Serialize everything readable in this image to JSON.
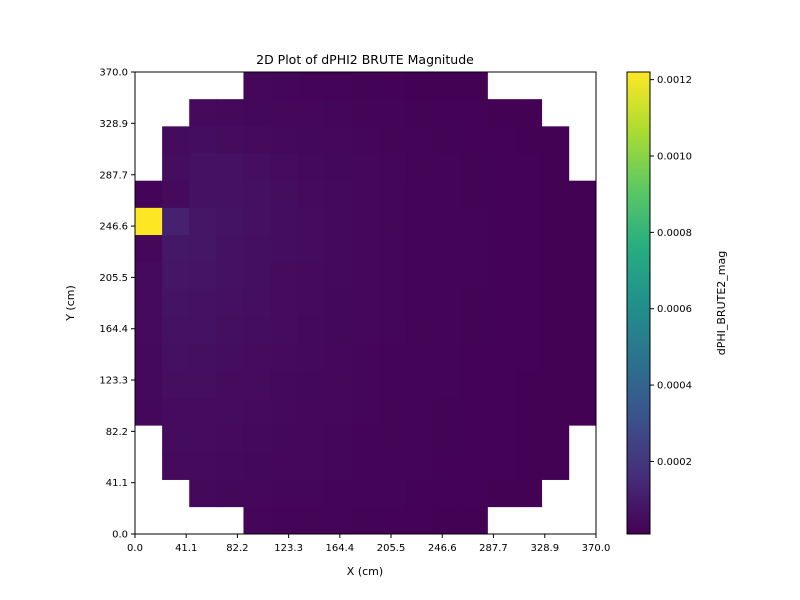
{
  "chart_data": {
    "type": "heatmap",
    "title": "2D Plot of dPHI2 BRUTE Magnitude",
    "xlabel": "X (cm)",
    "ylabel": "Y (cm)",
    "xlim": [
      0.0,
      370.0
    ],
    "ylim": [
      0.0,
      370.0
    ],
    "x_tick_labels": [
      "0.0",
      "41.1",
      "82.2",
      "123.3",
      "164.4",
      "205.5",
      "246.6",
      "287.7",
      "328.9",
      "370.0"
    ],
    "y_tick_labels": [
      "0.0",
      "41.1",
      "82.2",
      "123.3",
      "164.4",
      "205.5",
      "246.6",
      "287.7",
      "328.9",
      "370.0"
    ],
    "grid": false,
    "colormap": "viridis",
    "colorbar": {
      "label": "dPHI_BRUTE2_mag",
      "range": [
        1e-05,
        0.00122
      ],
      "tick_labels": [
        "0.0002",
        "0.0004",
        "0.0006",
        "0.0008",
        "0.0010",
        "0.0012"
      ]
    },
    "grid_size": 17,
    "cell_size": 21.76,
    "row_start_col": [
      4,
      2,
      1,
      1,
      0,
      0,
      0,
      0,
      0,
      0,
      0,
      0,
      0,
      1,
      1,
      2,
      4
    ],
    "row_end_col": [
      12,
      14,
      15,
      15,
      16,
      16,
      16,
      16,
      16,
      16,
      16,
      16,
      16,
      15,
      15,
      14,
      12
    ],
    "z_rows_top_to_bottom": [
      [
        3.2e-05,
        2.8e-05,
        2.4e-05,
        2.2e-05,
        1.9e-05,
        1.7e-05,
        1.5e-05,
        1.4e-05,
        1.3e-05
      ],
      [
        4e-05,
        3.8e-05,
        3.5e-05,
        3.2e-05,
        2.9e-05,
        2.6e-05,
        2.3e-05,
        2.1e-05,
        1.9e-05,
        1.7e-05,
        1.6e-05,
        1.5e-05,
        1.4e-05
      ],
      [
        4.5e-05,
        5.2e-05,
        4.8e-05,
        4.2e-05,
        3.7e-05,
        3.3e-05,
        2.9e-05,
        2.6e-05,
        2.3e-05,
        2.1e-05,
        1.9e-05,
        1.7e-05,
        1.6e-05,
        1.5e-05,
        1.4e-05
      ],
      [
        5e-05,
        7e-05,
        6.5e-05,
        5.5e-05,
        4.6e-05,
        3.9e-05,
        3.4e-05,
        3e-05,
        2.6e-05,
        2.3e-05,
        2.1e-05,
        1.9e-05,
        1.7e-05,
        1.6e-05,
        1.5e-05
      ],
      [
        2.5e-05,
        4e-05,
        7e-05,
        7e-05,
        6e-05,
        5e-05,
        4.2e-05,
        3.6e-05,
        3.1e-05,
        2.7e-05,
        2.4e-05,
        2.1e-05,
        1.9e-05,
        1.7e-05,
        1.6e-05,
        1.5e-05,
        1.4e-05
      ],
      [
        0.00122,
        0.00012,
        8e-05,
        7.2e-05,
        6.2e-05,
        5.2e-05,
        4.4e-05,
        3.7e-05,
        3.2e-05,
        2.8e-05,
        2.5e-05,
        2.2e-05,
        2e-05,
        1.8e-05,
        1.6e-05,
        1.5e-05,
        1.4e-05
      ],
      [
        3e-05,
        8.5e-05,
        7.8e-05,
        6.8e-05,
        5.9e-05,
        5e-05,
        4.3e-05,
        3.7e-05,
        3.2e-05,
        2.8e-05,
        2.5e-05,
        2.2e-05,
        2e-05,
        1.8e-05,
        1.6e-05,
        1.5e-05,
        1.4e-05
      ],
      [
        4e-05,
        8e-05,
        7.4e-05,
        7e-05,
        5.8e-05,
        4.9e-05,
        4.2e-05,
        3.6e-05,
        3.1e-05,
        2.7e-05,
        2.4e-05,
        2.2e-05,
        2e-05,
        1.8e-05,
        1.6e-05,
        1.5e-05,
        1.4e-05
      ],
      [
        4.2e-05,
        7.2e-05,
        7e-05,
        6.2e-05,
        5.4e-05,
        4.6e-05,
        4e-05,
        3.5e-05,
        3e-05,
        2.7e-05,
        2.4e-05,
        2.1e-05,
        1.9e-05,
        1.7e-05,
        1.6e-05,
        1.5e-05,
        1.4e-05
      ],
      [
        4e-05,
        6.6e-05,
        6.4e-05,
        5.7e-05,
        5e-05,
        4.4e-05,
        3.8e-05,
        3.3e-05,
        2.9e-05,
        2.6e-05,
        2.3e-05,
        2.1e-05,
        1.9e-05,
        1.7e-05,
        1.6e-05,
        1.5e-05,
        1.4e-05
      ],
      [
        3.8e-05,
        6e-05,
        5.8e-05,
        5.2e-05,
        4.6e-05,
        4.1e-05,
        3.6e-05,
        3.2e-05,
        2.8e-05,
        2.5e-05,
        2.2e-05,
        2e-05,
        1.8e-05,
        1.7e-05,
        1.6e-05,
        1.5e-05,
        1.4e-05
      ],
      [
        3.6e-05,
        5.4e-05,
        5.3e-05,
        4.8e-05,
        4.3e-05,
        3.8e-05,
        3.4e-05,
        3e-05,
        2.7e-05,
        2.4e-05,
        2.2e-05,
        2e-05,
        1.8e-05,
        1.6e-05,
        1.5e-05,
        1.4e-05,
        1.3e-05
      ],
      [
        3.4e-05,
        4.9e-05,
        4.8e-05,
        4.4e-05,
        4e-05,
        3.6e-05,
        3.2e-05,
        2.9e-05,
        2.6e-05,
        2.3e-05,
        2.1e-05,
        1.9e-05,
        1.7e-05,
        1.6e-05,
        1.5e-05,
        1.4e-05,
        1.3e-05
      ],
      [
        4.4e-05,
        4.4e-05,
        4.1e-05,
        3.7e-05,
        3.4e-05,
        3.1e-05,
        2.8e-05,
        2.5e-05,
        2.3e-05,
        2.1e-05,
        1.9e-05,
        1.7e-05,
        1.6e-05,
        1.5e-05,
        1.4e-05
      ],
      [
        4e-05,
        4e-05,
        3.8e-05,
        3.5e-05,
        3.2e-05,
        2.9e-05,
        2.6e-05,
        2.4e-05,
        2.2e-05,
        2e-05,
        1.8e-05,
        1.7e-05,
        1.6e-05,
        1.5e-05,
        1.4e-05
      ],
      [
        3.6e-05,
        3.4e-05,
        3.1e-05,
        2.8e-05,
        2.6e-05,
        2.4e-05,
        2.2e-05,
        2e-05,
        1.8e-05,
        1.7e-05,
        1.6e-05,
        1.5e-05,
        1.4e-05
      ],
      [
        2.8e-05,
        2.5e-05,
        2.3e-05,
        2.1e-05,
        1.9e-05,
        1.8e-05,
        1.6e-05,
        1.5e-05,
        1.4e-05
      ]
    ]
  }
}
